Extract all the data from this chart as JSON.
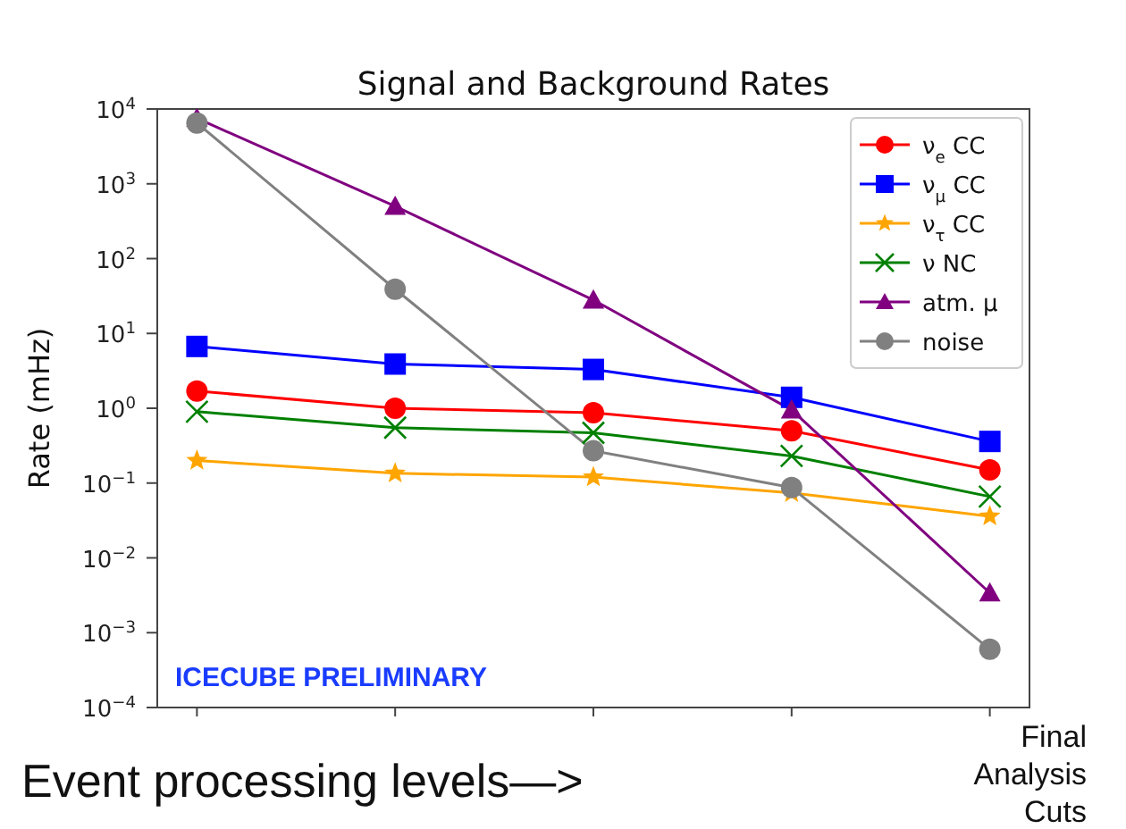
{
  "chart_data": {
    "type": "line",
    "title": "Signal and Background Rates",
    "xlabel": "Event processing levels—>",
    "ylabel": "Rate (mHz)",
    "categories": [
      null,
      null,
      null,
      null,
      "Final Analysis Cuts"
    ],
    "series": [
      {
        "name": "ν$_{e}$ CC",
        "color": "#ff0000",
        "marker": "circle",
        "values": [
          1.7,
          1.0,
          0.87,
          0.5,
          0.15
        ]
      },
      {
        "name": "ν$_{μ}$ CC",
        "color": "#0000ff",
        "marker": "square",
        "values": [
          6.7,
          3.9,
          3.3,
          1.4,
          0.36
        ]
      },
      {
        "name": "ν$_{τ}$ CC",
        "color": "#ffa500",
        "marker": "star",
        "values": [
          0.2,
          0.135,
          0.12,
          0.074,
          0.036
        ]
      },
      {
        "name": "ν NC",
        "color": "#008000",
        "marker": "cross",
        "values": [
          0.9,
          0.55,
          0.47,
          0.23,
          0.066
        ]
      },
      {
        "name": "atm. μ",
        "color": "#800080",
        "marker": "triangle",
        "values": [
          7500,
          500,
          28,
          0.95,
          0.0034
        ]
      },
      {
        "name": "noise",
        "color": "#808080",
        "marker": "circle",
        "values": [
          6500,
          39,
          0.27,
          0.087,
          0.0006
        ]
      }
    ],
    "log": true,
    "ylim": [
      0.0001,
      10000
    ],
    "yticks": [
      {
        "value": 0.0001,
        "label": "10$^{−4}$"
      },
      {
        "value": 0.001,
        "label": "10$^{−3}$"
      },
      {
        "value": 0.01,
        "label": "10$^{−2}$"
      },
      {
        "value": 0.1,
        "label": "10$^{−1}$"
      },
      {
        "value": 1,
        "label": "10$^{0}$"
      },
      {
        "value": 10,
        "label": "10$^{1}$"
      },
      {
        "value": 100,
        "label": "10$^{2}$"
      },
      {
        "value": 1000,
        "label": "10$^{3}$"
      },
      {
        "value": 10000,
        "label": "10$^{4}$"
      }
    ],
    "grid": false,
    "legend": "top right",
    "line_style": "solid",
    "annotations": [
      "ICECUBE PRELIMINARY"
    ]
  }
}
